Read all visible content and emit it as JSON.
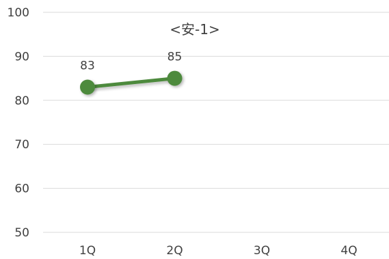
{
  "chart_data": {
    "type": "line",
    "title": "<安-1>",
    "categories": [
      "1Q",
      "2Q",
      "3Q",
      "4Q"
    ],
    "series": [
      {
        "values": [
          83,
          85,
          null,
          null
        ],
        "color": "#4e8a3e"
      }
    ],
    "ylim": [
      50,
      100
    ],
    "yticks": [
      50,
      60,
      70,
      80,
      90,
      100
    ],
    "grid": true,
    "data_labels": true
  }
}
